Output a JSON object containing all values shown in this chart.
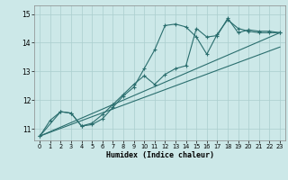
{
  "xlabel": "Humidex (Indice chaleur)",
  "bg_color": "#cce8e8",
  "line_color": "#2a6e6e",
  "grid_color": "#aacece",
  "xlim": [
    -0.5,
    23.5
  ],
  "ylim": [
    10.6,
    15.3
  ],
  "yticks": [
    11,
    12,
    13,
    14,
    15
  ],
  "xticks": [
    0,
    1,
    2,
    3,
    4,
    5,
    6,
    7,
    8,
    9,
    10,
    11,
    12,
    13,
    14,
    15,
    16,
    17,
    18,
    19,
    20,
    21,
    22,
    23
  ],
  "series1_x": [
    0,
    1,
    2,
    3,
    4,
    5,
    6,
    7,
    8,
    9,
    10,
    11,
    12,
    13,
    14,
    15,
    16,
    17,
    18,
    19,
    20,
    21,
    22,
    23
  ],
  "series1_y": [
    10.75,
    11.3,
    11.6,
    11.55,
    11.1,
    11.15,
    11.35,
    11.75,
    12.15,
    12.45,
    13.1,
    13.75,
    14.6,
    14.65,
    14.55,
    14.2,
    13.6,
    14.3,
    14.8,
    14.5,
    14.4,
    14.35,
    14.35,
    14.35
  ],
  "series2_x": [
    0,
    2,
    3,
    4,
    5,
    6,
    7,
    8,
    9,
    10,
    11,
    12,
    13,
    14,
    15,
    16,
    17,
    18,
    19,
    20,
    21,
    22,
    23
  ],
  "series2_y": [
    10.75,
    11.6,
    11.55,
    11.1,
    11.2,
    11.5,
    11.85,
    12.2,
    12.55,
    12.85,
    12.55,
    12.9,
    13.1,
    13.2,
    14.5,
    14.2,
    14.25,
    14.85,
    14.35,
    14.45,
    14.4,
    14.4,
    14.35
  ],
  "line3_x": [
    0,
    23
  ],
  "line3_y": [
    10.75,
    14.35
  ],
  "line4_x": [
    0,
    23
  ],
  "line4_y": [
    10.75,
    13.85
  ]
}
